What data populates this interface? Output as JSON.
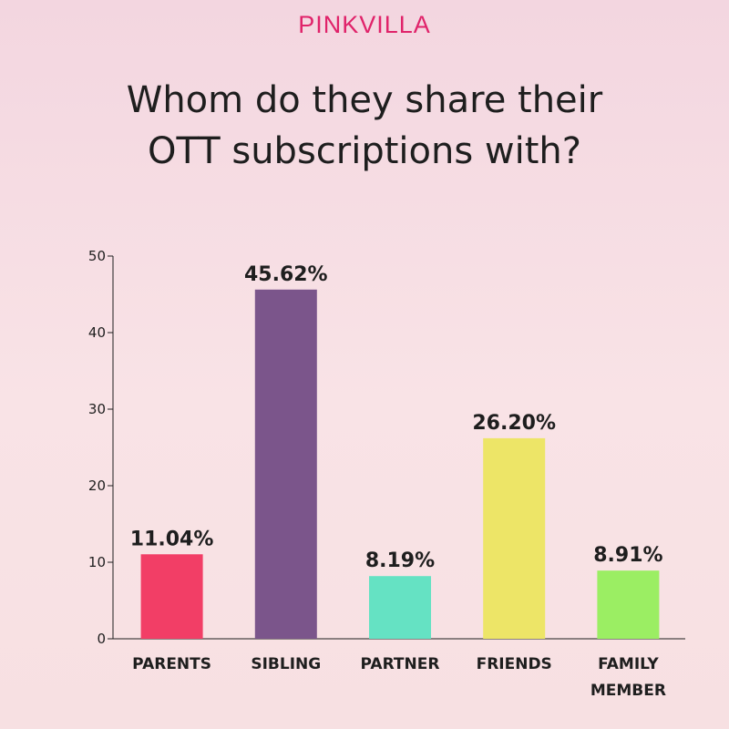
{
  "brand": {
    "name": "PINKVILLA",
    "color": "#e0236a"
  },
  "chart_data": {
    "type": "bar",
    "title_lines": [
      "Whom do they share their",
      "OTT subscriptions with?"
    ],
    "categories": [
      [
        "PARENTS"
      ],
      [
        "SIBLING"
      ],
      [
        "PARTNER"
      ],
      [
        "FRIENDS"
      ],
      [
        "FAMILY",
        "MEMBER"
      ]
    ],
    "values": [
      11.04,
      45.62,
      8.19,
      26.2,
      8.91
    ],
    "value_labels": [
      "11.04%",
      "45.62%",
      "8.19%",
      "26.20%",
      "8.91%"
    ],
    "colors": [
      "#f23e66",
      "#7b558b",
      "#65e2c3",
      "#ede567",
      "#9bee63"
    ],
    "ylim": [
      0,
      50
    ],
    "yticks": [
      0,
      10,
      20,
      30,
      40,
      50
    ],
    "xlabel": "",
    "ylabel": "",
    "grid": false,
    "legend": "none"
  }
}
